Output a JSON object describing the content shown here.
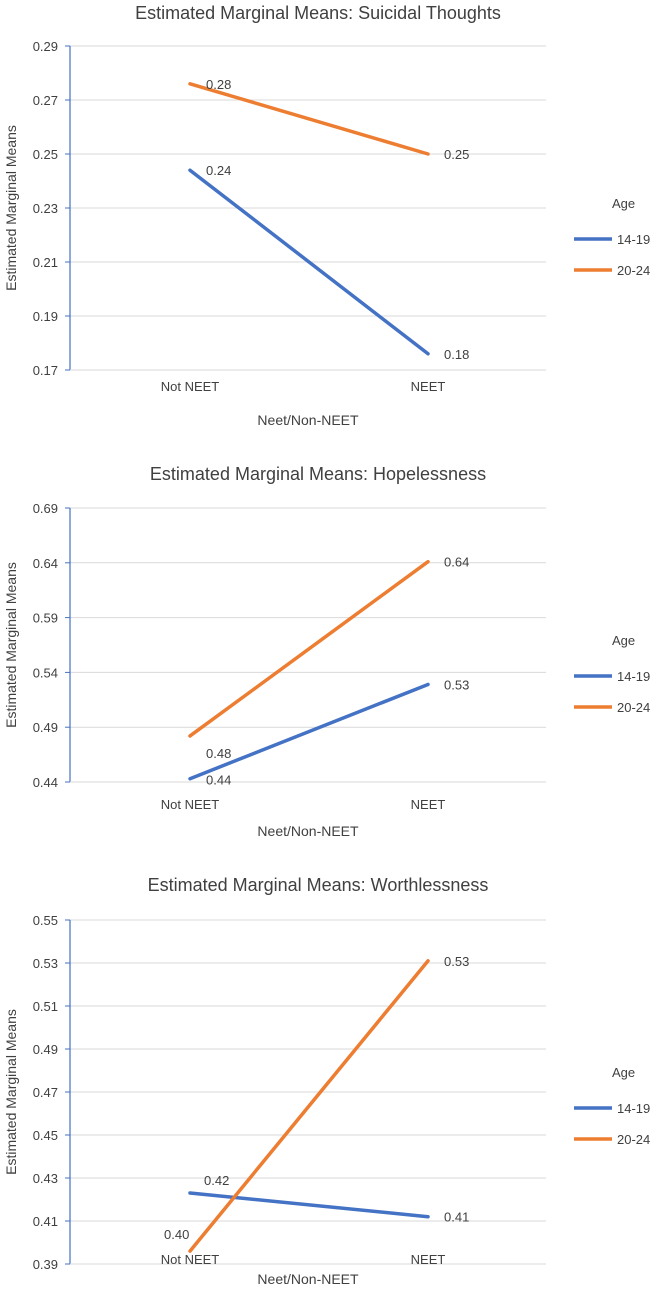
{
  "colors": {
    "series_14_19": "#4472C4",
    "series_20_24": "#ED7D31",
    "grid": "#D9D9D9",
    "axis": "#4472C4",
    "text": "#404040"
  },
  "chart_data": [
    {
      "type": "line",
      "title": "Estimated Marginal Means: Suicidal Thoughts",
      "xlabel": "Neet/Non-NEET",
      "ylabel": "Estimated Marginal Means",
      "categories": [
        "Not NEET",
        "NEET"
      ],
      "ylim": [
        0.17,
        0.29
      ],
      "yticks": [
        "0.17",
        "0.19",
        "0.21",
        "0.23",
        "0.25",
        "0.27",
        "0.29"
      ],
      "legend_title": "Age",
      "legend_position": "right",
      "series": [
        {
          "name": "14-19",
          "values": [
            0.244,
            0.176
          ],
          "labels": [
            "0.24",
            "0.18"
          ]
        },
        {
          "name": "20-24",
          "values": [
            0.276,
            0.25
          ],
          "labels": [
            "0.28",
            "0.25"
          ]
        }
      ]
    },
    {
      "type": "line",
      "title": "Estimated Marginal Means: Hopelessness",
      "xlabel": "Neet/Non-NEET",
      "ylabel": "Estimated Marginal Means",
      "categories": [
        "Not NEET",
        "NEET"
      ],
      "ylim": [
        0.44,
        0.69
      ],
      "yticks": [
        "0.44",
        "0.49",
        "0.54",
        "0.59",
        "0.64",
        "0.69"
      ],
      "legend_title": "Age",
      "legend_position": "right",
      "series": [
        {
          "name": "14-19",
          "values": [
            0.443,
            0.529
          ],
          "labels": [
            "0.44",
            "0.53"
          ]
        },
        {
          "name": "20-24",
          "values": [
            0.482,
            0.641
          ],
          "labels": [
            "0.48",
            "0.64"
          ]
        }
      ]
    },
    {
      "type": "line",
      "title": "Estimated Marginal Means: Worthlessness",
      "xlabel": "Neet/Non-NEET",
      "ylabel": "Estimated Marginal Means",
      "categories": [
        "Not NEET",
        "NEET"
      ],
      "ylim": [
        0.39,
        0.55
      ],
      "yticks": [
        "0.39",
        "0.41",
        "0.43",
        "0.45",
        "0.47",
        "0.49",
        "0.51",
        "0.53",
        "0.55"
      ],
      "legend_title": "Age",
      "legend_position": "right",
      "series": [
        {
          "name": "14-19",
          "values": [
            0.423,
            0.412
          ],
          "labels": [
            "0.42",
            "0.41"
          ]
        },
        {
          "name": "20-24",
          "values": [
            0.396,
            0.531
          ],
          "labels": [
            "0.40",
            "0.53"
          ]
        }
      ]
    }
  ]
}
